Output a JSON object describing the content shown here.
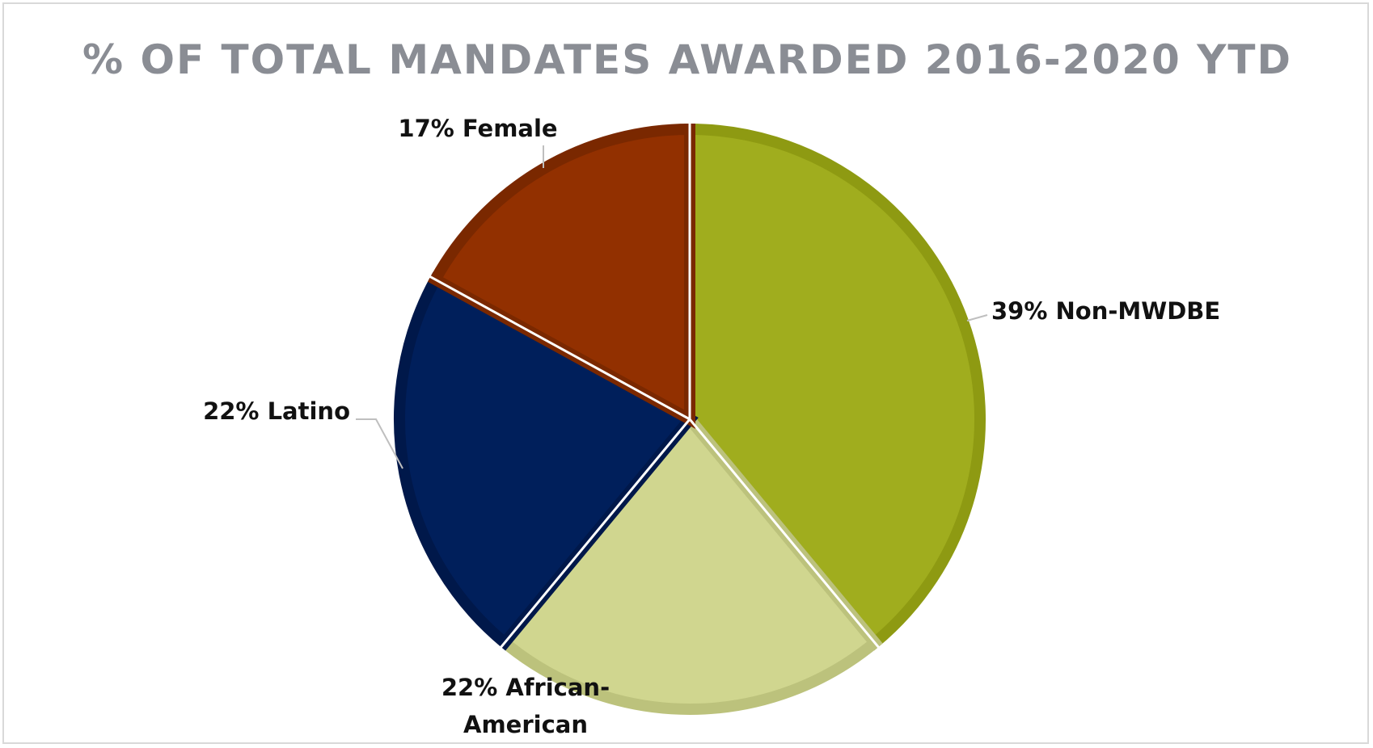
{
  "chart_data": {
    "type": "pie",
    "title": "% OF TOTAL MANDATES AWARDED 2016-2020 YTD",
    "slices": [
      {
        "label": "Non-MWDBE",
        "value": 39,
        "display": "39% Non-MWDBE",
        "color": "#a0ad1e",
        "edge_color": "#8e9a12"
      },
      {
        "label": "African-American",
        "value": 22,
        "display": "22% African-American",
        "color": "#d0d68f",
        "edge_color": "#bcc27c"
      },
      {
        "label": "Latino",
        "value": 22,
        "display": "22% Latino",
        "color": "#001f5b",
        "edge_color": "#00184a"
      },
      {
        "label": "Female",
        "value": 17,
        "display": "17% Female",
        "color": "#923000",
        "edge_color": "#7a2800"
      }
    ],
    "start_angle_deg": 0,
    "direction": "clockwise",
    "legend": "none",
    "data_labels": "outside-with-leader-lines"
  }
}
